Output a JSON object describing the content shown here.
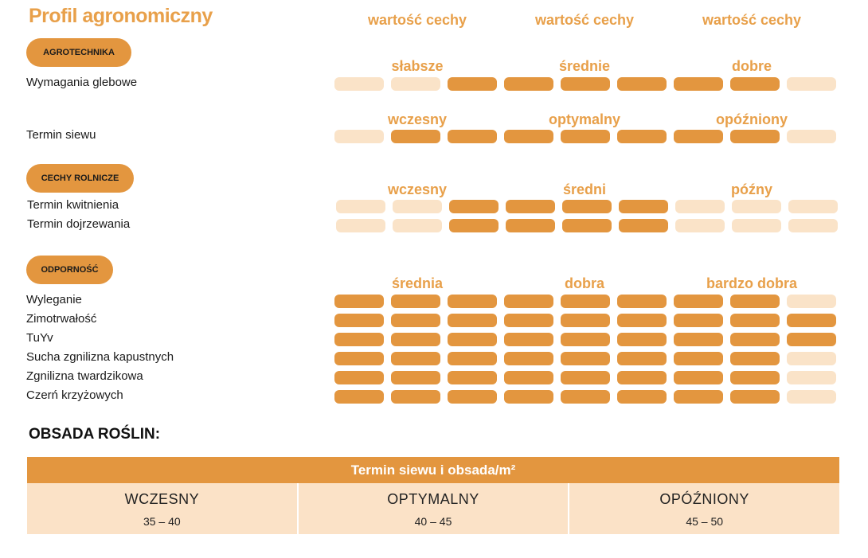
{
  "title": "Profil agronomiczny",
  "value_headers": [
    "wartość cechy",
    "wartość cechy",
    "wartość cechy"
  ],
  "sections": [
    {
      "name": "AGROTECHNIKA",
      "groups": [
        {
          "scale": [
            "słabsze",
            "średnie",
            "dobre"
          ],
          "traits": [
            {
              "label": "Wymagania glebowe",
              "level": [
                0,
                0,
                1,
                1,
                1,
                1,
                1,
                1,
                0
              ]
            }
          ]
        },
        {
          "scale": [
            "wczesny",
            "optymalny",
            "opóźniony"
          ],
          "traits": [
            {
              "label": "Termin siewu",
              "level": [
                0,
                1,
                1,
                1,
                1,
                1,
                1,
                1,
                0
              ]
            }
          ]
        }
      ]
    },
    {
      "name": "CECHY ROLNICZE",
      "groups": [
        {
          "scale": [
            "wczesny",
            "średni",
            "późny"
          ],
          "traits": [
            {
              "label": "Termin kwitnienia",
              "level": [
                0,
                0,
                1,
                1,
                1,
                1,
                0,
                0,
                0
              ]
            },
            {
              "label": "Termin dojrzewania",
              "level": [
                0,
                0,
                1,
                1,
                1,
                1,
                0,
                0,
                0
              ]
            }
          ]
        }
      ]
    },
    {
      "name": "ODPORNOŚĆ",
      "groups": [
        {
          "scale": [
            "średnia",
            "dobra",
            "bardzo dobra"
          ],
          "traits": [
            {
              "label": "Wyleganie",
              "level": [
                1,
                1,
                1,
                1,
                1,
                1,
                1,
                1,
                0
              ]
            },
            {
              "label": "Zimotrwałość",
              "level": [
                1,
                1,
                1,
                1,
                1,
                1,
                1,
                1,
                1
              ]
            },
            {
              "label": "TuYv",
              "level": [
                1,
                1,
                1,
                1,
                1,
                1,
                1,
                1,
                1
              ]
            },
            {
              "label": "Sucha zgnilizna kapustnych",
              "level": [
                1,
                1,
                1,
                1,
                1,
                1,
                1,
                1,
                0
              ]
            },
            {
              "label": "Zgnilizna twardzikowa",
              "level": [
                1,
                1,
                1,
                1,
                1,
                1,
                1,
                1,
                0
              ]
            },
            {
              "label": "Czerń krzyżowych",
              "level": [
                1,
                1,
                1,
                1,
                1,
                1,
                1,
                1,
                0
              ]
            }
          ]
        }
      ]
    }
  ],
  "density": {
    "heading": "OBSADA ROŚLIN:",
    "table_title": "Termin siewu i obsada/m²",
    "columns": [
      {
        "name": "WCZESNY",
        "value": "35 – 40"
      },
      {
        "name": "OPTYMALNY",
        "value": "40 – 45"
      },
      {
        "name": "OPÓŹNIONY",
        "value": "45 – 50"
      }
    ]
  },
  "colors": {
    "accent": "#e3963f",
    "accent_text": "#e8a04a",
    "inactive": "#fae3c8"
  }
}
